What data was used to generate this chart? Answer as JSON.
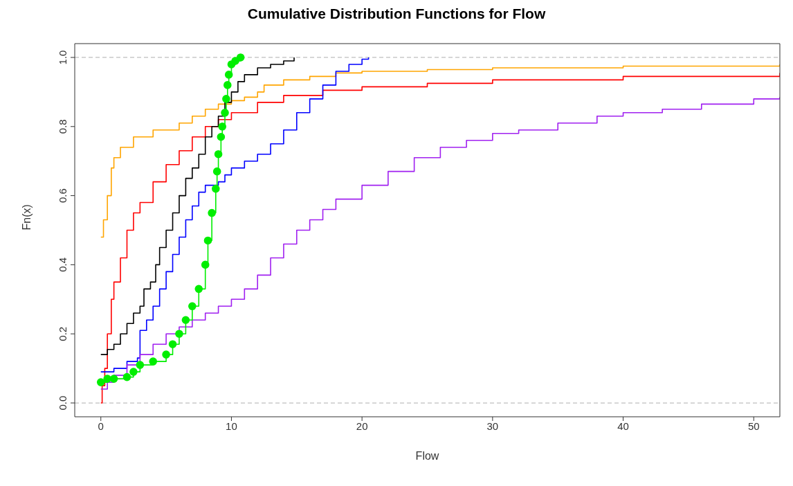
{
  "chart_data": {
    "type": "step",
    "title": "Cumulative Distribution Functions for Flow",
    "xlabel": "Flow",
    "ylabel": "Fn(x)",
    "xlim": [
      -2,
      52
    ],
    "xticks": [
      0,
      10,
      20,
      30,
      40,
      50
    ],
    "ylim": [
      -0.04,
      1.04
    ],
    "yticks": [
      {
        "value": 0,
        "label": "0.0"
      },
      {
        "value": 0.2,
        "label": "0.2"
      },
      {
        "value": 0.4,
        "label": "0.4"
      },
      {
        "value": 0.6,
        "label": "0.6"
      },
      {
        "value": 0.8,
        "label": "0.8"
      },
      {
        "value": 1,
        "label": "1.0"
      }
    ],
    "ref_lines": [
      {
        "axis": "y",
        "value": 0,
        "color": "#bebebe",
        "line_style": "dashed"
      },
      {
        "axis": "y",
        "value": 1,
        "color": "#bebebe",
        "line_style": "dashed"
      }
    ],
    "marker": "none",
    "line_style": "solid",
    "series": [
      {
        "color": "#ffa500",
        "x": [
          0,
          0.2,
          0.5,
          0.8,
          1,
          1.5,
          2.5,
          4,
          6,
          7,
          8,
          9,
          10,
          11,
          12,
          12.5,
          14,
          16,
          18,
          20,
          25,
          30,
          40,
          52
        ],
        "values": [
          0.48,
          0.53,
          0.6,
          0.68,
          0.71,
          0.74,
          0.77,
          0.79,
          0.81,
          0.83,
          0.85,
          0.865,
          0.875,
          0.885,
          0.9,
          0.92,
          0.935,
          0.945,
          0.955,
          0.96,
          0.965,
          0.97,
          0.975,
          0.98
        ]
      },
      {
        "color": "#ff0000",
        "x": [
          0,
          0.1,
          0.3,
          0.5,
          0.8,
          1,
          1.5,
          2,
          2.5,
          3,
          4,
          5,
          6,
          7,
          8,
          9,
          10,
          12,
          14,
          17,
          20,
          25,
          30,
          40,
          52
        ],
        "values": [
          0,
          0.05,
          0.1,
          0.2,
          0.3,
          0.35,
          0.42,
          0.5,
          0.55,
          0.58,
          0.64,
          0.69,
          0.73,
          0.77,
          0.8,
          0.82,
          0.84,
          0.87,
          0.89,
          0.905,
          0.915,
          0.925,
          0.935,
          0.945,
          0.955
        ]
      },
      {
        "color": "#000000",
        "x": [
          0,
          0.5,
          1,
          1.5,
          2,
          2.5,
          3,
          3.3,
          3.8,
          4.2,
          4.5,
          5,
          5.5,
          6,
          6.5,
          7,
          7.5,
          8,
          8.5,
          9,
          9.5,
          10,
          10.5,
          11,
          12,
          13,
          14,
          14.8
        ],
        "values": [
          0.14,
          0.155,
          0.17,
          0.2,
          0.23,
          0.26,
          0.28,
          0.33,
          0.35,
          0.4,
          0.45,
          0.5,
          0.55,
          0.6,
          0.65,
          0.68,
          0.72,
          0.77,
          0.8,
          0.83,
          0.87,
          0.9,
          0.93,
          0.95,
          0.97,
          0.98,
          0.99,
          1
        ]
      },
      {
        "color": "#0000ff",
        "x": [
          0,
          1,
          2,
          2.8,
          3,
          3.5,
          4,
          4.5,
          5,
          5.5,
          6,
          6.5,
          7,
          7.5,
          8,
          9,
          9.5,
          10,
          11,
          12,
          13,
          14,
          15,
          16,
          17,
          18,
          19,
          20,
          20.5
        ],
        "values": [
          0.09,
          0.1,
          0.12,
          0.13,
          0.21,
          0.24,
          0.28,
          0.33,
          0.38,
          0.43,
          0.48,
          0.53,
          0.57,
          0.61,
          0.63,
          0.64,
          0.66,
          0.68,
          0.7,
          0.72,
          0.75,
          0.79,
          0.84,
          0.88,
          0.92,
          0.96,
          0.98,
          0.995,
          1
        ]
      },
      {
        "color": "#a020f0",
        "x": [
          0,
          0.5,
          1,
          2,
          3,
          4,
          5,
          6,
          7,
          8,
          9,
          10,
          11,
          12,
          13,
          14,
          15,
          16,
          17,
          18,
          20,
          22,
          24,
          26,
          28,
          30,
          32,
          35,
          38,
          40,
          43,
          46,
          50,
          52
        ],
        "values": [
          0.04,
          0.06,
          0.08,
          0.11,
          0.14,
          0.17,
          0.2,
          0.22,
          0.24,
          0.26,
          0.28,
          0.3,
          0.33,
          0.37,
          0.42,
          0.46,
          0.5,
          0.53,
          0.56,
          0.59,
          0.63,
          0.67,
          0.71,
          0.74,
          0.76,
          0.78,
          0.79,
          0.81,
          0.83,
          0.84,
          0.85,
          0.865,
          0.88,
          0.885
        ]
      },
      {
        "color": "#00ee00",
        "marker": "circle",
        "x": [
          0,
          0.5,
          1,
          2,
          2.5,
          3,
          4,
          5,
          5.5,
          6,
          6.5,
          7,
          7.5,
          8,
          8.2,
          8.5,
          8.8,
          8.9,
          9,
          9.2,
          9.3,
          9.5,
          9.6,
          9.7,
          9.8,
          10,
          10.3,
          10.7
        ],
        "values": [
          0.06,
          0.07,
          0.07,
          0.075,
          0.09,
          0.11,
          0.12,
          0.14,
          0.17,
          0.2,
          0.24,
          0.28,
          0.33,
          0.4,
          0.47,
          0.55,
          0.62,
          0.67,
          0.72,
          0.77,
          0.8,
          0.84,
          0.88,
          0.92,
          0.95,
          0.98,
          0.99,
          1
        ]
      }
    ]
  }
}
